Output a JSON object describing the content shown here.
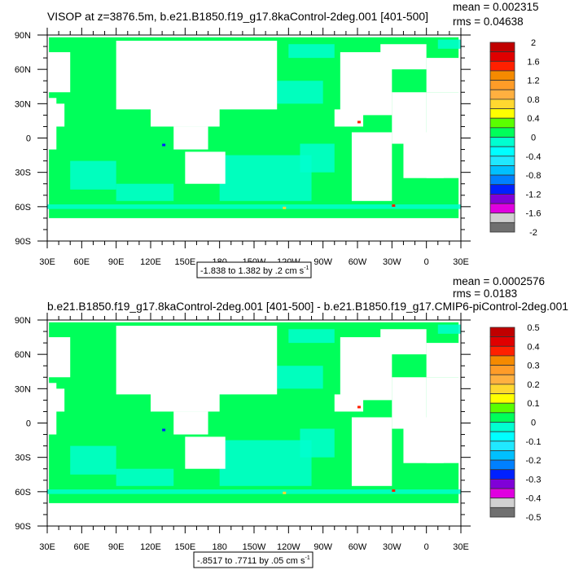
{
  "chart_data": [
    {
      "type": "heatmap",
      "title": "VISOP at z=3876.5m, b.e21.B1850.f19_g17.8kaControl-2deg.001 [401-500]",
      "stats": {
        "mean": "mean = 0.002315",
        "rms": "rms = 0.04638"
      },
      "contour_info": "-1.838 to 1.382 by .2 cm s",
      "contour_unit_exp": "-1",
      "y_ticks": [
        "90N",
        "60N",
        "30N",
        "0",
        "30S",
        "60S",
        "90S"
      ],
      "x_ticks": [
        "30E",
        "60E",
        "90E",
        "120E",
        "150E",
        "180",
        "150W",
        "120W",
        "90W",
        "60W",
        "30W",
        "0",
        "30E"
      ],
      "colorbar": {
        "labels": [
          "2",
          "1.6",
          "1.2",
          "0.8",
          "0.4",
          "0",
          "-0.4",
          "-0.8",
          "-1.2",
          "-1.6",
          "-2"
        ],
        "levels": [
          2,
          1.8,
          1.6,
          1.4,
          1.2,
          1,
          0.8,
          0.6,
          0.4,
          0.2,
          0,
          -0.2,
          -0.4,
          -0.6,
          -0.8,
          -1,
          -1.2,
          -1.4,
          -1.6,
          -1.8,
          -2
        ]
      },
      "dominant_range": [
        -0.2,
        0.2
      ]
    },
    {
      "type": "heatmap",
      "title": "b.e21.B1850.f19_g17.8kaControl-2deg.001 [401-500] - b.e21.B1850.f19_g17.CMIP6-piControl-2deg.001",
      "stats": {
        "mean": "mean = 0.0002576",
        "rms": "rms = 0.0183"
      },
      "contour_info": "-.8517 to .7711 by .05 cm s",
      "contour_unit_exp": "-1",
      "y_ticks": [
        "90N",
        "60N",
        "30N",
        "0",
        "30S",
        "60S",
        "90S"
      ],
      "x_ticks": [
        "30E",
        "60E",
        "90E",
        "120E",
        "150E",
        "180",
        "150W",
        "120W",
        "90W",
        "60W",
        "30W",
        "0",
        "30E"
      ],
      "colorbar": {
        "labels": [
          "0.5",
          "0.4",
          "0.3",
          "0.2",
          "0.1",
          "0",
          "-0.1",
          "-0.2",
          "-0.3",
          "-0.4",
          "-0.5"
        ],
        "levels": [
          0.5,
          0.45,
          0.4,
          0.35,
          0.3,
          0.25,
          0.2,
          0.15,
          0.1,
          0.05,
          0,
          -0.05,
          -0.1,
          -0.15,
          -0.2,
          -0.25,
          -0.3,
          -0.35,
          -0.4,
          -0.45,
          -0.5
        ]
      },
      "dominant_range": [
        -0.05,
        0.05
      ]
    }
  ],
  "colors": [
    "#c00000",
    "#e00000",
    "#ff2000",
    "#f58a00",
    "#ff9c28",
    "#ffb040",
    "#ffd830",
    "#ffff00",
    "#5aff00",
    "#00ff5a",
    "#00ffd0",
    "#00ffff",
    "#20e8ff",
    "#00c0ff",
    "#0080ff",
    "#0020ff",
    "#8000d8",
    "#e000e0",
    "#d0d0d0",
    "#707070"
  ]
}
